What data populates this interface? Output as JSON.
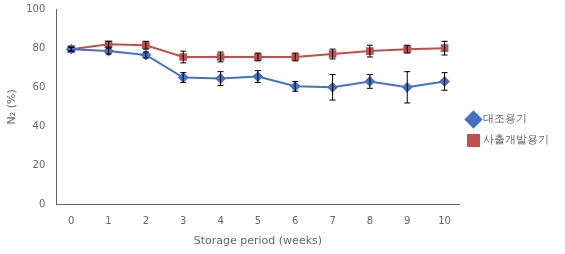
{
  "chart_data": {
    "type": "line",
    "x": [
      0,
      1,
      2,
      3,
      4,
      5,
      6,
      7,
      8,
      9,
      10
    ],
    "series": [
      {
        "name": "대조용기",
        "color": "#4472C4",
        "marker": "diamond",
        "values": [
          79.5,
          78.5,
          76.5,
          65.0,
          64.5,
          65.5,
          60.5,
          60.0,
          63.0,
          60.0,
          63.0
        ],
        "errors": [
          1.0,
          1.5,
          1.5,
          2.5,
          3.5,
          3.0,
          2.5,
          6.5,
          3.5,
          8.0,
          4.5
        ]
      },
      {
        "name": "사출개발용기",
        "color": "#C0504D",
        "marker": "square",
        "values": [
          79.5,
          82.0,
          81.5,
          75.5,
          75.5,
          75.5,
          75.5,
          77.0,
          78.5,
          79.5,
          80.0
        ],
        "errors": [
          1.0,
          1.5,
          2.0,
          3.0,
          2.5,
          2.0,
          2.0,
          2.5,
          3.0,
          2.0,
          3.5
        ]
      }
    ],
    "xlabel": "Storage period (weeks)",
    "ylabel": "N₂ (%)",
    "xlim": [
      -0.4,
      10.4
    ],
    "ylim": [
      0,
      100
    ],
    "xticks": [
      0,
      1,
      2,
      3,
      4,
      5,
      6,
      7,
      8,
      9,
      10
    ],
    "yticks": [
      0,
      20,
      40,
      60,
      80,
      100
    ],
    "grid": false,
    "legend": "right"
  }
}
